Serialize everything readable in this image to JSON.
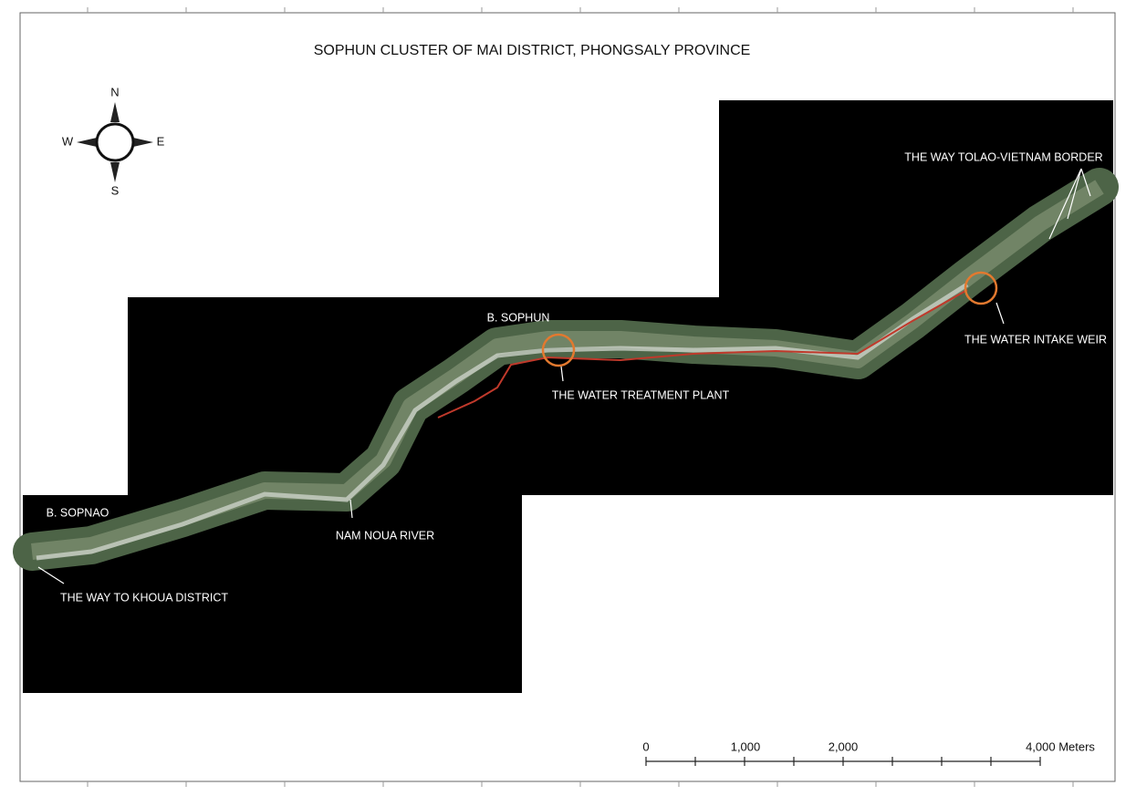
{
  "title": "SOPHUN CLUSTER OF MAI DISTRICT, PHONGSALY PROVINCE",
  "compass": {
    "north": "N",
    "east": "E",
    "south": "S",
    "west": "W"
  },
  "annotations": [
    "THE WAY TOLAO-VIETNAM BORDER",
    "THE WATER INTAKE WEIR",
    "B. SOPHUN",
    "THE WATER TREATMENT PLANT",
    "B. SOPNAO",
    "NAM NOUA RIVER",
    "THE WAY TO KHOUA DISTRICT"
  ],
  "scale_bar": {
    "labels": [
      "0",
      "1,000",
      "2,000",
      "4,000 Meters"
    ]
  }
}
